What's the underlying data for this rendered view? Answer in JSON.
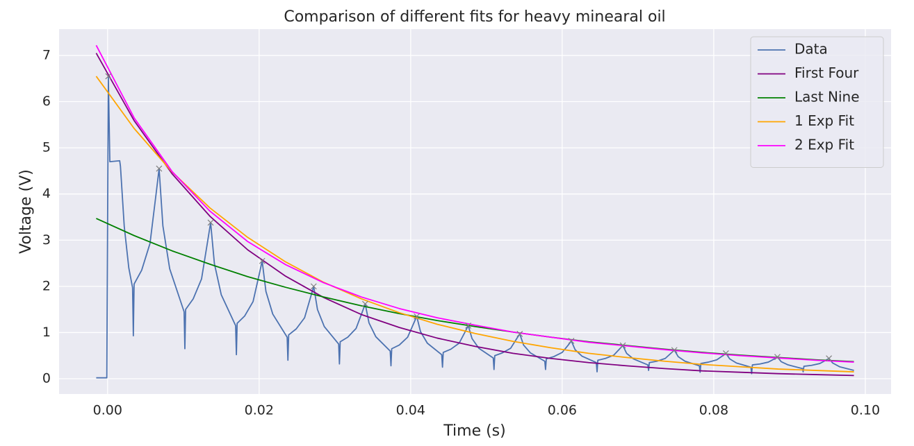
{
  "chart_data": {
    "type": "line",
    "title": "Comparison of different fits for heavy minearal oil",
    "xlabel": "Time (s)",
    "ylabel": "Voltage (V)",
    "xlim": [
      -0.0064,
      0.1034
    ],
    "ylim": [
      -0.33,
      7.57
    ],
    "xticks": [
      {
        "value": 0,
        "label": "0.00"
      },
      {
        "value": 0.02,
        "label": "0.02"
      },
      {
        "value": 0.04,
        "label": "0.04"
      },
      {
        "value": 0.06,
        "label": "0.06"
      },
      {
        "value": 0.08,
        "label": "0.08"
      },
      {
        "value": 0.1,
        "label": "0.10"
      }
    ],
    "yticks": [
      0,
      1,
      2,
      3,
      4,
      5,
      6,
      7
    ],
    "grid": true,
    "legend": "upper right",
    "series": [
      {
        "name": "Data",
        "color": "#4c72b0",
        "x": [
          -0.0015,
          -0.0001,
          0.0001,
          0.0003,
          0.0016,
          0.0017,
          0.0022,
          0.0028,
          0.0033,
          0.0034,
          0.0035,
          0.0045,
          0.0056,
          0.0064,
          0.0068,
          0.0073,
          0.0082,
          0.0101,
          0.0102,
          0.0103,
          0.0113,
          0.0124,
          0.0132,
          0.0136,
          0.0141,
          0.015,
          0.0169,
          0.017,
          0.0171,
          0.0181,
          0.0192,
          0.02,
          0.0204,
          0.0209,
          0.0218,
          0.0237,
          0.0238,
          0.0239,
          0.0249,
          0.026,
          0.0268,
          0.0272,
          0.0277,
          0.0286,
          0.0305,
          0.0306,
          0.0307,
          0.0317,
          0.0328,
          0.0336,
          0.034,
          0.0345,
          0.0354,
          0.0373,
          0.0374,
          0.0375,
          0.0385,
          0.0396,
          0.0404,
          0.0408,
          0.0413,
          0.0422,
          0.0441,
          0.0442,
          0.0443,
          0.0453,
          0.0464,
          0.0472,
          0.0476,
          0.0481,
          0.049,
          0.0509,
          0.051,
          0.0511,
          0.0521,
          0.0532,
          0.054,
          0.0544,
          0.0549,
          0.0558,
          0.0577,
          0.0578,
          0.0579,
          0.0589,
          0.06,
          0.0608,
          0.0612,
          0.0617,
          0.0626,
          0.0645,
          0.0646,
          0.0647,
          0.0657,
          0.0668,
          0.0676,
          0.068,
          0.0685,
          0.0694,
          0.0713,
          0.0714,
          0.0715,
          0.0725,
          0.0736,
          0.0744,
          0.0748,
          0.0753,
          0.0762,
          0.0781,
          0.0782,
          0.0783,
          0.0793,
          0.0804,
          0.0812,
          0.0816,
          0.0821,
          0.083,
          0.0849,
          0.085,
          0.0851,
          0.0861,
          0.0872,
          0.088,
          0.0884,
          0.0889,
          0.0898,
          0.0917,
          0.0918,
          0.0919,
          0.0929,
          0.094,
          0.0948,
          0.0952,
          0.0957,
          0.0966,
          0.0985
        ],
        "values": [
          0.02,
          0.02,
          6.55,
          4.7,
          4.72,
          4.6,
          3.3,
          2.4,
          1.97,
          0.93,
          2.05,
          2.35,
          2.93,
          4.0,
          4.55,
          3.31,
          2.38,
          1.45,
          0.65,
          1.5,
          1.73,
          2.16,
          2.97,
          3.38,
          2.49,
          1.82,
          1.15,
          0.52,
          1.2,
          1.36,
          1.67,
          2.25,
          2.55,
          1.89,
          1.4,
          0.9,
          0.4,
          0.95,
          1.08,
          1.32,
          1.77,
          2.0,
          1.5,
          1.13,
          0.75,
          0.32,
          0.8,
          0.9,
          1.09,
          1.44,
          1.62,
          1.21,
          0.91,
          0.6,
          0.28,
          0.65,
          0.73,
          0.9,
          1.2,
          1.35,
          1.02,
          0.77,
          0.52,
          0.25,
          0.57,
          0.64,
          0.77,
          1.02,
          1.15,
          0.87,
          0.66,
          0.45,
          0.2,
          0.5,
          0.56,
          0.66,
          0.87,
          0.97,
          0.73,
          0.56,
          0.38,
          0.2,
          0.43,
          0.48,
          0.57,
          0.73,
          0.82,
          0.63,
          0.49,
          0.35,
          0.15,
          0.4,
          0.44,
          0.51,
          0.65,
          0.72,
          0.55,
          0.43,
          0.3,
          0.18,
          0.35,
          0.38,
          0.44,
          0.56,
          0.62,
          0.48,
          0.38,
          0.28,
          0.14,
          0.33,
          0.36,
          0.41,
          0.5,
          0.55,
          0.43,
          0.34,
          0.25,
          0.11,
          0.3,
          0.32,
          0.36,
          0.43,
          0.47,
          0.37,
          0.3,
          0.22,
          0.15,
          0.27,
          0.29,
          0.33,
          0.4,
          0.44,
          0.34,
          0.26,
          0.18
        ]
      },
      {
        "name": "First Four",
        "color": "#800080",
        "x": [
          -0.0015,
          0.0035,
          0.0085,
          0.0135,
          0.0185,
          0.0235,
          0.0285,
          0.0335,
          0.0385,
          0.0435,
          0.0485,
          0.0535,
          0.0585,
          0.0635,
          0.0685,
          0.0735,
          0.0785,
          0.0835,
          0.0885,
          0.0935,
          0.0985
        ],
        "values": [
          7.05,
          5.59,
          4.44,
          3.52,
          2.79,
          2.22,
          1.76,
          1.39,
          1.11,
          0.88,
          0.7,
          0.55,
          0.44,
          0.35,
          0.28,
          0.22,
          0.17,
          0.14,
          0.11,
          0.09,
          0.07
        ]
      },
      {
        "name": "Last Nine",
        "color": "#008000",
        "x": [
          -0.0015,
          0.0035,
          0.0085,
          0.0135,
          0.0185,
          0.0235,
          0.0285,
          0.0335,
          0.0385,
          0.0435,
          0.0485,
          0.0535,
          0.0585,
          0.0635,
          0.0685,
          0.0735,
          0.0785,
          0.0835,
          0.0885,
          0.0935,
          0.0985
        ],
        "values": [
          3.47,
          3.1,
          2.77,
          2.48,
          2.21,
          1.98,
          1.77,
          1.58,
          1.41,
          1.26,
          1.13,
          1.01,
          0.9,
          0.8,
          0.72,
          0.64,
          0.57,
          0.51,
          0.46,
          0.41,
          0.37
        ]
      },
      {
        "name": "1 Exp Fit",
        "color": "#ffa500",
        "x": [
          -0.0015,
          0.0035,
          0.0085,
          0.0135,
          0.0185,
          0.0235,
          0.0285,
          0.0335,
          0.0385,
          0.0435,
          0.0485,
          0.0535,
          0.0585,
          0.0635,
          0.0685,
          0.0735,
          0.0785,
          0.0835,
          0.0885,
          0.0935,
          0.0985
        ],
        "values": [
          6.55,
          5.42,
          4.48,
          3.7,
          3.06,
          2.53,
          2.09,
          1.73,
          1.43,
          1.18,
          0.98,
          0.81,
          0.67,
          0.55,
          0.46,
          0.38,
          0.31,
          0.26,
          0.21,
          0.18,
          0.15
        ]
      },
      {
        "name": "2 Exp Fit",
        "color": "#ff00ff",
        "x": [
          -0.0015,
          0.0035,
          0.0085,
          0.0135,
          0.0185,
          0.0235,
          0.0285,
          0.0335,
          0.0385,
          0.0435,
          0.0485,
          0.0535,
          0.0585,
          0.0635,
          0.0685,
          0.0735,
          0.0785,
          0.0835,
          0.0885,
          0.0935,
          0.0985
        ],
        "values": [
          7.22,
          5.65,
          4.49,
          3.63,
          2.97,
          2.47,
          2.08,
          1.77,
          1.52,
          1.32,
          1.16,
          1.01,
          0.9,
          0.79,
          0.71,
          0.63,
          0.56,
          0.5,
          0.45,
          0.4,
          0.36
        ]
      }
    ],
    "peaks": {
      "color": "#7f7f7f",
      "x": [
        0.0001,
        0.0068,
        0.0136,
        0.0204,
        0.0272,
        0.034,
        0.0408,
        0.0476,
        0.0544,
        0.0612,
        0.068,
        0.0748,
        0.0816,
        0.0884,
        0.0952
      ],
      "values": [
        6.55,
        4.55,
        3.38,
        2.55,
        2.0,
        1.62,
        1.35,
        1.15,
        0.97,
        0.82,
        0.72,
        0.62,
        0.55,
        0.47,
        0.44
      ]
    }
  }
}
